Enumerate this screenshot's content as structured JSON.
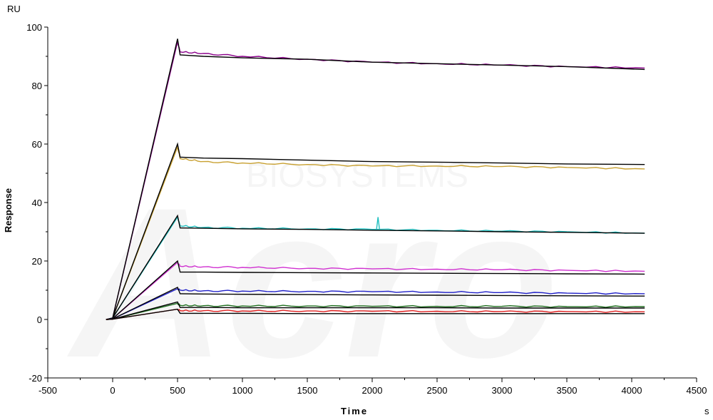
{
  "chart_data": {
    "type": "line",
    "title": "",
    "xlabel": "Time",
    "ylabel": "Response",
    "x_unit": "s",
    "y_unit": "RU",
    "xlim": [
      -500,
      4500
    ],
    "ylim": [
      -20,
      100
    ],
    "x_ticks": [
      "-500",
      "0",
      "500",
      "1000",
      "1500",
      "2000",
      "2500",
      "3000",
      "3500",
      "4000",
      "4500"
    ],
    "y_ticks": [
      "-20",
      "0",
      "20",
      "40",
      "60",
      "80",
      "100"
    ],
    "grid": false,
    "legend": "none",
    "series": [
      {
        "color": "#8b008b",
        "fit_color": "#000000",
        "x": [
          -50,
          0,
          500,
          520,
          700,
          1000,
          1500,
          2000,
          2500,
          3000,
          3500,
          4100
        ],
        "y": [
          0,
          0.5,
          95,
          91.5,
          91,
          90,
          89,
          88,
          87.5,
          87,
          86.5,
          86
        ],
        "fit_y": [
          0,
          0.5,
          96,
          90.5,
          90,
          89.5,
          89,
          88,
          87.5,
          87,
          86.5,
          85.5
        ]
      },
      {
        "color": "#c8a030",
        "fit_color": "#000000",
        "x": [
          -50,
          0,
          500,
          520,
          700,
          1000,
          1500,
          2000,
          2500,
          3000,
          3500,
          4100
        ],
        "y": [
          0,
          0.5,
          59,
          55,
          54,
          53.5,
          53,
          52.5,
          52.5,
          52.3,
          52,
          51.5
        ],
        "fit_y": [
          0,
          0.5,
          60,
          55.5,
          55.2,
          55,
          54.5,
          54,
          53.8,
          53.5,
          53.2,
          53
        ]
      },
      {
        "color": "#20c0c0",
        "fit_color": "#000000",
        "x": [
          -50,
          0,
          500,
          520,
          700,
          1000,
          1500,
          2000,
          2500,
          3000,
          3500,
          4100
        ],
        "y": [
          0,
          0.5,
          35,
          32,
          31.5,
          31.2,
          31,
          30.8,
          30.5,
          30.2,
          30,
          29.5
        ],
        "fit_y": [
          0,
          0.5,
          35.5,
          31.3,
          31.2,
          31,
          30.8,
          30.5,
          30.3,
          30,
          29.8,
          29.5
        ]
      },
      {
        "color": "#d030d0",
        "fit_color": "#000000",
        "x": [
          -50,
          0,
          500,
          520,
          700,
          1000,
          1500,
          2000,
          2500,
          3000,
          3500,
          4100
        ],
        "y": [
          0,
          0.3,
          19.5,
          18.2,
          18,
          17.8,
          17.5,
          17.3,
          17.2,
          17,
          16.8,
          16.5
        ],
        "fit_y": [
          0,
          0.3,
          20,
          16.2,
          16.2,
          16.1,
          16,
          15.9,
          15.8,
          15.7,
          15.6,
          15.5
        ]
      },
      {
        "color": "#2020c8",
        "fit_color": "#000000",
        "x": [
          -50,
          0,
          500,
          520,
          700,
          1000,
          1500,
          2000,
          2500,
          3000,
          3500,
          4100
        ],
        "y": [
          0,
          0.2,
          10.5,
          10,
          9.8,
          9.7,
          9.6,
          9.5,
          9.4,
          9.2,
          9,
          8.8
        ],
        "fit_y": [
          0,
          0.2,
          11,
          8.8,
          8.7,
          8.6,
          8.5,
          8.4,
          8.3,
          8.2,
          8.1,
          8
        ]
      },
      {
        "color": "#207020",
        "fit_color": "#000000",
        "x": [
          -50,
          0,
          500,
          520,
          700,
          1000,
          1500,
          2000,
          2500,
          3000,
          3500,
          4100
        ],
        "y": [
          0,
          0.1,
          5.5,
          4.8,
          4.7,
          4.6,
          4.6,
          4.5,
          4.5,
          4.5,
          4.4,
          4.4
        ],
        "fit_y": [
          0,
          0.1,
          6,
          4.1,
          4.1,
          4,
          4,
          4,
          4,
          3.9,
          3.9,
          3.9
        ]
      },
      {
        "color": "#e02020",
        "fit_color": "#000000",
        "x": [
          -50,
          0,
          500,
          520,
          700,
          1000,
          1500,
          2000,
          2500,
          3000,
          3500,
          4100
        ],
        "y": [
          0,
          0.1,
          3.5,
          3,
          3,
          2.9,
          2.9,
          2.8,
          2.8,
          2.7,
          2.7,
          2.6
        ],
        "fit_y": [
          0,
          0.1,
          3.5,
          2.1,
          2.1,
          2.1,
          2,
          2,
          2,
          2,
          2,
          2
        ]
      }
    ],
    "spike": {
      "series_index": 2,
      "x": 2045,
      "y": 35
    }
  },
  "watermark": {
    "main": "Acro",
    "sub": "BIOSYSTEMS"
  }
}
